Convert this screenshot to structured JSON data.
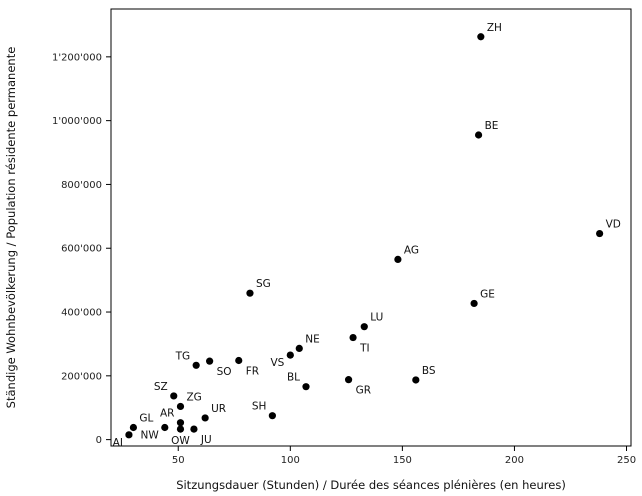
{
  "chart_data": {
    "type": "scatter",
    "title": "",
    "xlabel": "Sitzungsdauer (Stunden) / Durée des séances plénières (en heures)",
    "ylabel": "Ständige Wohnbevölkerung / Population résidente permanente",
    "xlim": [
      20,
      252
    ],
    "ylim": [
      -20000,
      1350000
    ],
    "grid": false,
    "x_ticks": [
      {
        "value": 50,
        "label": "50"
      },
      {
        "value": 100,
        "label": "100"
      },
      {
        "value": 150,
        "label": "150"
      },
      {
        "value": 200,
        "label": "200"
      },
      {
        "value": 250,
        "label": "250"
      }
    ],
    "y_ticks": [
      {
        "value": 0,
        "label": "0"
      },
      {
        "value": 200000,
        "label": "200'000"
      },
      {
        "value": 400000,
        "label": "400'000"
      },
      {
        "value": 600000,
        "label": "600'000"
      },
      {
        "value": 800000,
        "label": "800'000"
      },
      {
        "value": 1000000,
        "label": "1'000'000"
      },
      {
        "value": 1200000,
        "label": "1'200'000"
      }
    ],
    "points": [
      {
        "label": "ZH",
        "x": 185,
        "y": 1263000,
        "anchor": "ne"
      },
      {
        "label": "BE",
        "x": 184,
        "y": 955000,
        "anchor": "ne"
      },
      {
        "label": "VD",
        "x": 238,
        "y": 646000,
        "anchor": "ne"
      },
      {
        "label": "AG",
        "x": 148,
        "y": 565000,
        "anchor": "ne"
      },
      {
        "label": "GE",
        "x": 182,
        "y": 427000,
        "anchor": "ne"
      },
      {
        "label": "SG",
        "x": 82,
        "y": 459000,
        "anchor": "ne"
      },
      {
        "label": "LU",
        "x": 133,
        "y": 354000,
        "anchor": "ne"
      },
      {
        "label": "TI",
        "x": 128,
        "y": 320000,
        "anchor": "se"
      },
      {
        "label": "NE",
        "x": 104,
        "y": 286000,
        "anchor": "ne"
      },
      {
        "label": "VS",
        "x": 100,
        "y": 265000,
        "anchor": "sw"
      },
      {
        "label": "FR",
        "x": 77,
        "y": 248000,
        "anchor": "se"
      },
      {
        "label": "SO",
        "x": 64,
        "y": 246000,
        "anchor": "se"
      },
      {
        "label": "TG",
        "x": 58,
        "y": 233000,
        "anchor": "nw"
      },
      {
        "label": "BL",
        "x": 107,
        "y": 166000,
        "anchor": "nw"
      },
      {
        "label": "GR",
        "x": 126,
        "y": 188000,
        "anchor": "se"
      },
      {
        "label": "BS",
        "x": 156,
        "y": 187000,
        "anchor": "ne"
      },
      {
        "label": "SZ",
        "x": 48,
        "y": 137000,
        "anchor": "nw"
      },
      {
        "label": "ZG",
        "x": 51,
        "y": 104000,
        "anchor": "ne"
      },
      {
        "label": "SH",
        "x": 92,
        "y": 75000,
        "anchor": "nw"
      },
      {
        "label": "UR",
        "x": 62,
        "y": 68000,
        "anchor": "ne"
      },
      {
        "label": "AR",
        "x": 51,
        "y": 53000,
        "anchor": "nw"
      },
      {
        "label": "GL",
        "x": 30,
        "y": 38000,
        "anchor": "ne"
      },
      {
        "label": "NW",
        "x": 44,
        "y": 38000,
        "anchor": "sw"
      },
      {
        "label": "OW",
        "x": 51,
        "y": 33000,
        "anchor": "s"
      },
      {
        "label": "JU",
        "x": 57,
        "y": 33000,
        "anchor": "se"
      },
      {
        "label": "AI",
        "x": 28,
        "y": 15000,
        "anchor": "sw"
      }
    ]
  }
}
